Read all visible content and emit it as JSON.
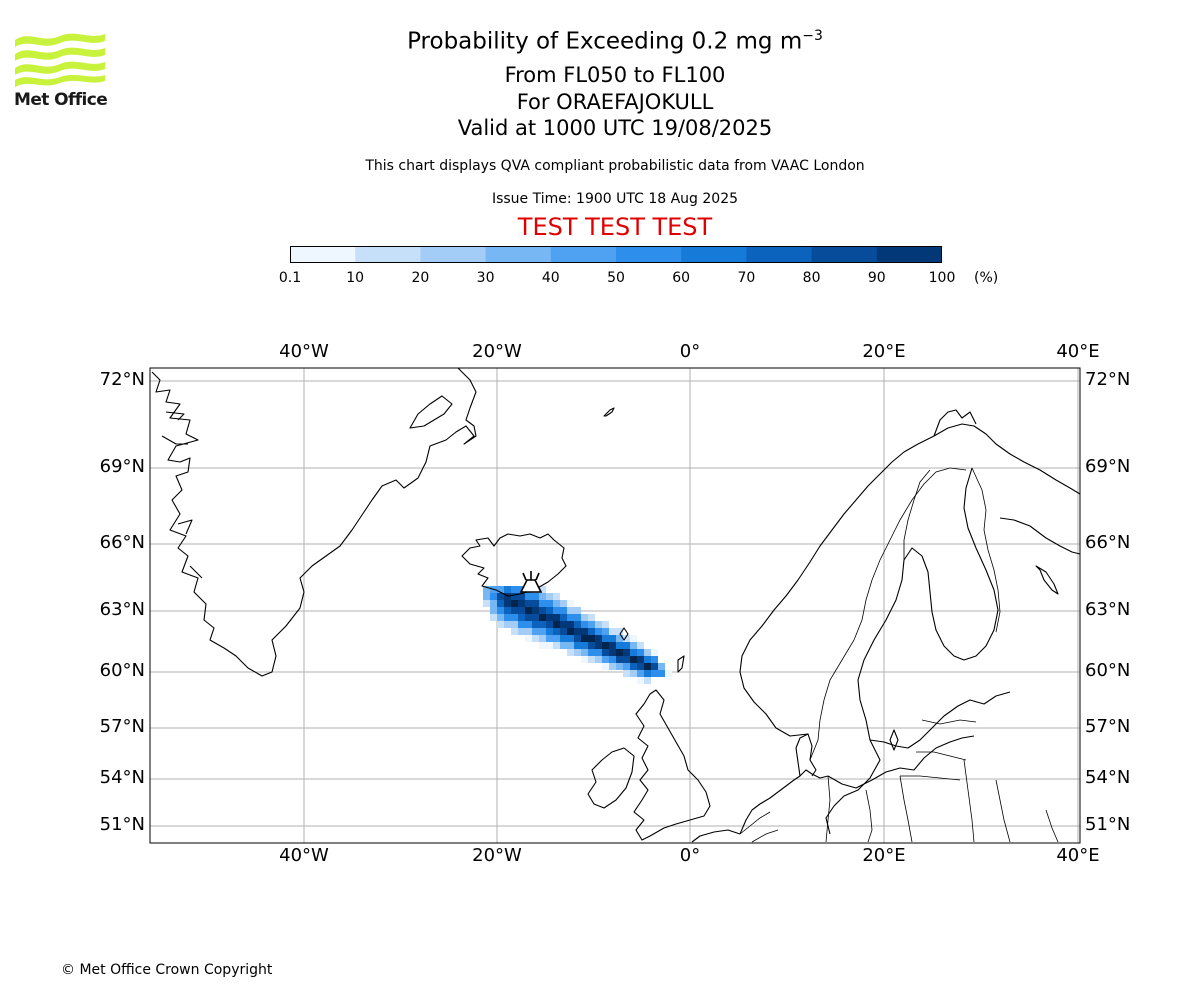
{
  "header": {
    "title_main": "Probability of Exceeding 0.2 mg m",
    "title_exponent": "−3",
    "level_range": "From FL050 to FL100",
    "volcano": "For ORAEFAJOKULL",
    "valid_time": "Valid at 1000 UTC 19/08/2025",
    "disclaimer": "This chart displays QVA compliant probabilistic data from VAAC London",
    "issue_time": "Issue Time: 1900 UTC 18 Aug 2025",
    "test_banner": "TEST TEST TEST",
    "test_color": "#e00000"
  },
  "logo": {
    "text": "Met Office",
    "color": "#c8f23c",
    "icon": "met-office-wave-logo"
  },
  "colorbar": {
    "unit": "(%)",
    "ticks": [
      "0.1",
      "10",
      "20",
      "30",
      "40",
      "50",
      "60",
      "70",
      "80",
      "90",
      "100"
    ],
    "colors": [
      "#eef6ff",
      "#c6e0f9",
      "#a3cdf6",
      "#77b7f4",
      "#4fa2f1",
      "#2d8eec",
      "#167ad8",
      "#0b63bd",
      "#064c9b",
      "#033878",
      "#02254f"
    ]
  },
  "map": {
    "lon_labels_top": [
      "40°W",
      "20°W",
      "0°",
      "20°E",
      "40°E"
    ],
    "lon_labels_bottom": [
      "40°W",
      "20°W",
      "0°",
      "20°E",
      "40°E"
    ],
    "lat_labels_left": [
      "72°N",
      "69°N",
      "66°N",
      "63°N",
      "60°N",
      "57°N",
      "54°N",
      "51°N"
    ],
    "lat_labels_right": [
      "72°N",
      "69°N",
      "66°N",
      "63°N",
      "60°N",
      "57°N",
      "54°N",
      "51°N"
    ],
    "volcano_marker": "volcano-icon"
  },
  "footer": {
    "copyright": "© Met Office Crown Copyright"
  }
}
